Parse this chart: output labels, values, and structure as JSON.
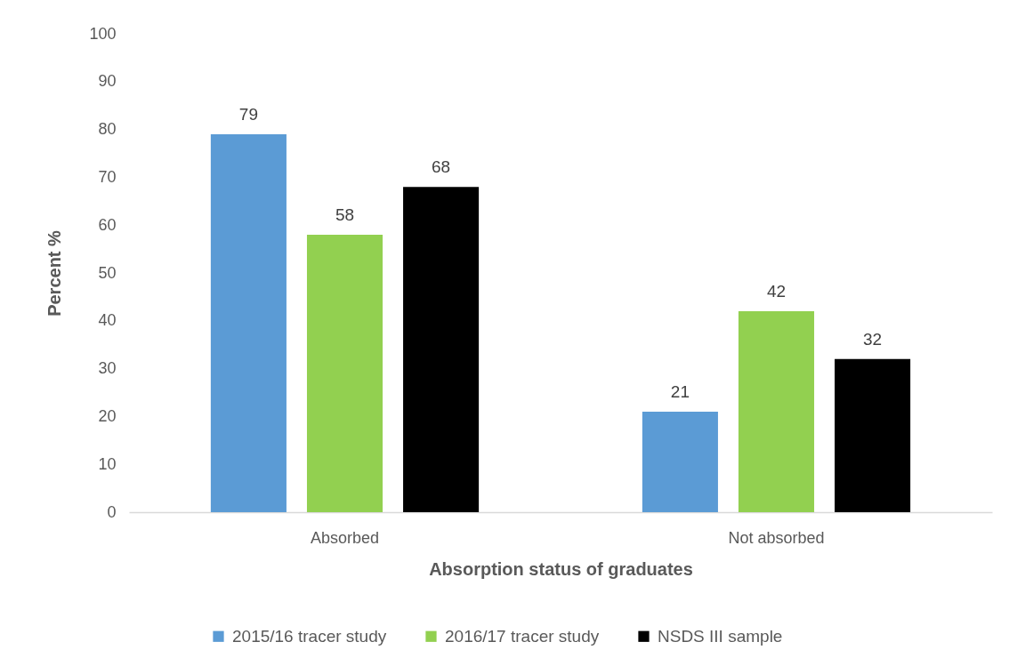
{
  "chart_data": {
    "type": "bar",
    "categories": [
      "Absorbed",
      "Not absorbed"
    ],
    "series": [
      {
        "name": "2015/16 tracer study",
        "color": "#5b9bd5",
        "values": [
          79,
          21
        ]
      },
      {
        "name": "2016/17 tracer study",
        "color": "#92d050",
        "values": [
          58,
          42
        ]
      },
      {
        "name": "NSDS III sample",
        "color": "#000000",
        "values": [
          68,
          32
        ]
      }
    ],
    "xlabel": "Absorption status of graduates",
    "ylabel": "Percent %",
    "ylim": [
      0,
      100
    ],
    "yticks": [
      0,
      10,
      20,
      30,
      40,
      50,
      60,
      70,
      80,
      90,
      100
    ],
    "data_labels": true,
    "legend": "bottom"
  }
}
